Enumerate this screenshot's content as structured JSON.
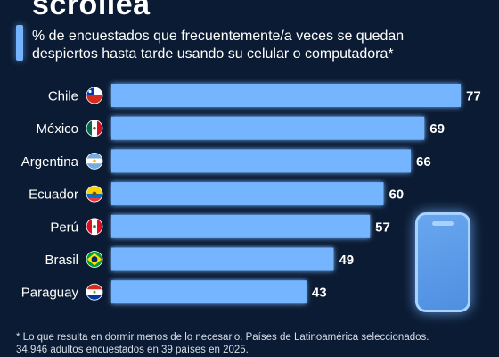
{
  "header": {
    "title": "scrollea",
    "subtitle_line1": "% de encuestados que frecuentemente/a veces se quedan",
    "subtitle_line2": "despiertos hasta tarde usando su celular o computadora*"
  },
  "colors": {
    "background": "#0b1b33",
    "bar": "#74b4ff",
    "accent": "#74b4ff"
  },
  "chart_data": {
    "type": "bar",
    "orientation": "horizontal",
    "categories": [
      "Chile",
      "México",
      "Argentina",
      "Ecuador",
      "Perú",
      "Brasil",
      "Paraguay"
    ],
    "values": [
      77,
      69,
      66,
      60,
      57,
      49,
      43
    ],
    "flags": [
      "chile-flag-icon",
      "mexico-flag-icon",
      "argentina-flag-icon",
      "ecuador-flag-icon",
      "peru-flag-icon",
      "brazil-flag-icon",
      "paraguay-flag-icon"
    ],
    "xlim": [
      0,
      77
    ],
    "grid": false
  },
  "footnote": {
    "line1": "* Lo que resulta en dormir menos de lo necesario. Países de Latinoamérica seleccionados.",
    "line2": "34.946 adultos encuestados en 39 países en 2025."
  },
  "decoration": {
    "phone_icon": "smartphone-icon"
  }
}
